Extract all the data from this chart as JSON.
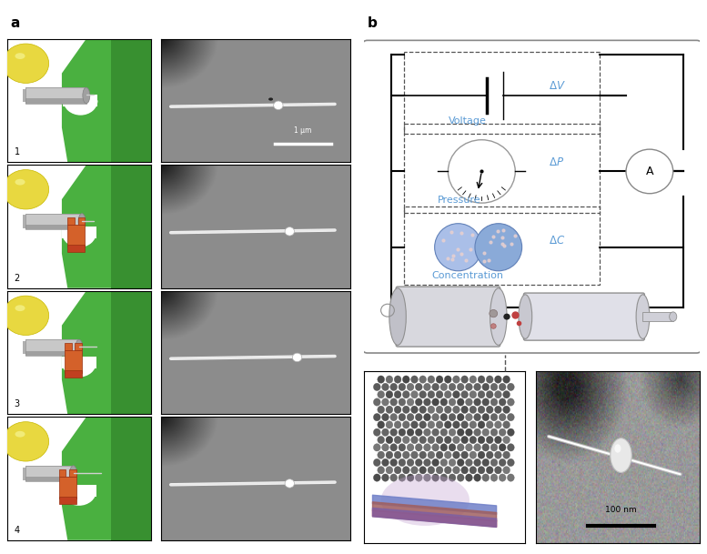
{
  "fig_width": 7.77,
  "fig_height": 6.09,
  "bg_color": "#ffffff",
  "label_a": "a",
  "label_b": "b",
  "green_color": "#4ab040",
  "yellow_color": "#e8d840",
  "orange_color": "#d4612a",
  "gray_rod": "#c0c0c0",
  "gray_dark": "#808080",
  "circuit_blue": "#5b9bd5",
  "scale_1um": "1 μm",
  "scale_100nm": "100 nm"
}
